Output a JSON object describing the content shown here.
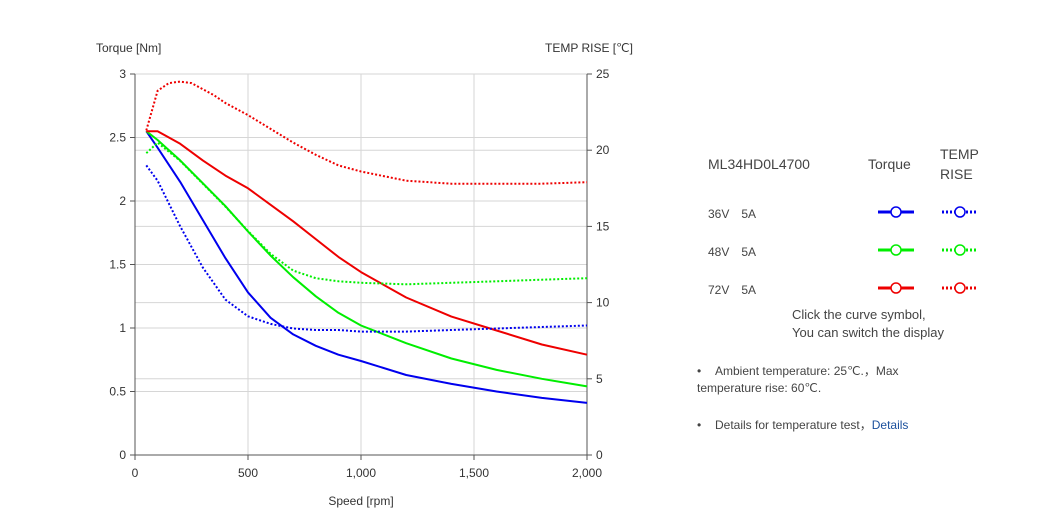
{
  "chart_data": {
    "type": "line",
    "xlabel": "Speed [rpm]",
    "ylabel_left": "Torque  [Nm]",
    "ylabel_right": "TEMP RISE [℃]",
    "xlim": [
      0,
      2000
    ],
    "ylim_left": [
      0,
      3
    ],
    "ylim_right": [
      0,
      25
    ],
    "x_ticks": [
      "0",
      "500",
      "1,000",
      "1,500",
      "2,000"
    ],
    "y_left_ticks": [
      "0",
      "0.5",
      "1",
      "1.5",
      "2",
      "2.5",
      "3"
    ],
    "y_right_ticks": [
      "0",
      "5",
      "10",
      "15",
      "20",
      "25"
    ],
    "grid": true,
    "torque_series": [
      {
        "name": "36V 5A",
        "color": "#0000ee",
        "axis": "left",
        "x": [
          50,
          100,
          200,
          300,
          400,
          500,
          600,
          700,
          800,
          900,
          1000,
          1200,
          1400,
          1600,
          1800,
          2000
        ],
        "y": [
          2.55,
          2.42,
          2.15,
          1.85,
          1.55,
          1.28,
          1.08,
          0.95,
          0.86,
          0.79,
          0.74,
          0.63,
          0.56,
          0.5,
          0.45,
          0.41
        ]
      },
      {
        "name": "48V 5A",
        "color": "#00ee00",
        "axis": "left",
        "x": [
          50,
          100,
          200,
          300,
          400,
          500,
          600,
          700,
          800,
          900,
          1000,
          1200,
          1400,
          1600,
          1800,
          2000
        ],
        "y": [
          2.55,
          2.48,
          2.32,
          2.14,
          1.96,
          1.76,
          1.57,
          1.4,
          1.25,
          1.12,
          1.02,
          0.88,
          0.76,
          0.67,
          0.6,
          0.54
        ]
      },
      {
        "name": "72V 5A",
        "color": "#ee0000",
        "axis": "left",
        "x": [
          50,
          100,
          200,
          300,
          400,
          500,
          600,
          700,
          800,
          900,
          1000,
          1200,
          1400,
          1600,
          1800,
          2000
        ],
        "y": [
          2.55,
          2.55,
          2.45,
          2.32,
          2.2,
          2.1,
          1.97,
          1.84,
          1.7,
          1.56,
          1.44,
          1.24,
          1.09,
          0.98,
          0.87,
          0.79
        ]
      }
    ],
    "temp_series": [
      {
        "name": "36V 5A",
        "color": "#0000ee",
        "axis": "right",
        "x": [
          50,
          100,
          200,
          300,
          400,
          500,
          600,
          700,
          800,
          900,
          1000,
          1200,
          1400,
          1600,
          1800,
          2000
        ],
        "y": [
          19.0,
          18.0,
          15.0,
          12.3,
          10.2,
          9.1,
          8.6,
          8.3,
          8.2,
          8.2,
          8.1,
          8.1,
          8.2,
          8.3,
          8.4,
          8.5
        ]
      },
      {
        "name": "48V 5A",
        "color": "#00ee00",
        "axis": "right",
        "x": [
          50,
          100,
          200,
          300,
          400,
          500,
          600,
          700,
          800,
          900,
          1000,
          1200,
          1400,
          1600,
          1800,
          2000
        ],
        "y": [
          19.8,
          20.5,
          19.3,
          17.8,
          16.3,
          14.7,
          13.2,
          12.1,
          11.6,
          11.4,
          11.3,
          11.2,
          11.3,
          11.4,
          11.5,
          11.6
        ]
      },
      {
        "name": "72V 5A",
        "color": "#ee0000",
        "axis": "right",
        "x": [
          50,
          100,
          150,
          200,
          250,
          300,
          350,
          400,
          500,
          600,
          700,
          800,
          900,
          1000,
          1200,
          1400,
          1600,
          1800,
          2000
        ],
        "y": [
          21.3,
          23.9,
          24.4,
          24.5,
          24.4,
          24.0,
          23.6,
          23.1,
          22.3,
          21.4,
          20.5,
          19.7,
          19.0,
          18.6,
          18.0,
          17.8,
          17.8,
          17.8,
          17.9
        ]
      }
    ]
  },
  "legend": {
    "title": "ML34HD0L4700",
    "col_torque": "Torque",
    "col_temp": "TEMP RISE",
    "rows": [
      {
        "label": "36V　5A",
        "color": "#0000ee"
      },
      {
        "label": "48V　5A",
        "color": "#00ee00"
      },
      {
        "label": "72V　5A",
        "color": "#ee0000"
      }
    ]
  },
  "hint": {
    "line1": "Click the curve symbol,",
    "line2": "You can switch the display"
  },
  "notes": {
    "bullet": "•",
    "ambient": "Ambient temperature: 25℃.，Max temperature rise: 60℃.",
    "details_text": "Details for temperature test，",
    "details_link": "Details"
  }
}
